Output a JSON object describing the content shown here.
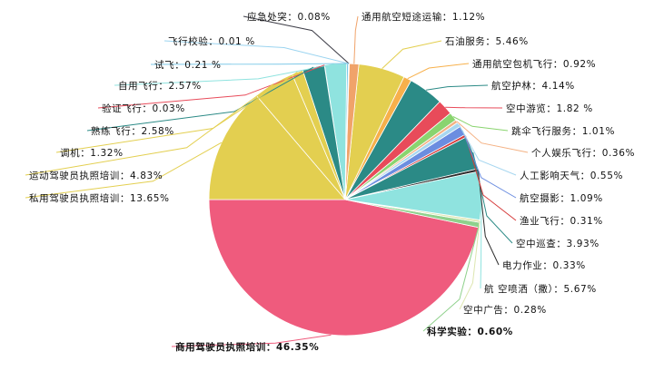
{
  "chart_data": {
    "type": "pie",
    "title": "",
    "slices": [
      {
        "label": "商用驾驶员执照培训：46.35%",
        "value": 46.35,
        "color": "#ef5b7d"
      },
      {
        "label": "科学实验：0.60%",
        "value": 0.6,
        "color": "#8fd18c"
      },
      {
        "label": "空中广告：0.28%",
        "value": 0.28,
        "color": "#dde6b0"
      },
      {
        "label": "航 空喷洒（撒）：5.67%",
        "value": 5.67,
        "color": "#8fe3df"
      },
      {
        "label": "电力作业：0.33%",
        "value": 0.33,
        "color": "#2d2d2d"
      },
      {
        "label": "空中巡查：3.93%",
        "value": 3.93,
        "color": "#2b8a86"
      },
      {
        "label": "渔业飞行：0.31%",
        "value": 0.31,
        "color": "#d63b3b"
      },
      {
        "label": "航空摄影：1.09%",
        "value": 1.09,
        "color": "#6b8de0"
      },
      {
        "label": "人工影响天气：0.55%",
        "value": 0.55,
        "color": "#a8d7f0"
      },
      {
        "label": "个人娱乐飞行：0.36%",
        "value": 0.36,
        "color": "#f4b183"
      },
      {
        "label": "跳伞飞行服务：1.01%",
        "value": 1.01,
        "color": "#8ad46f"
      },
      {
        "label": "空中游览：1.82 %",
        "value": 1.82,
        "color": "#e84b5a"
      },
      {
        "label": "航空护林：4.14%",
        "value": 4.14,
        "color": "#2b8a86"
      },
      {
        "label": "通用航空包机飞行：0.92%",
        "value": 0.92,
        "color": "#f7b04b"
      },
      {
        "label": "石油服务：5.46%",
        "value": 5.46,
        "color": "#e3cf50"
      },
      {
        "label": "通用航空短途运输：1.12%",
        "value": 1.12,
        "color": "#f0a36a"
      },
      {
        "label": "应急处突：0.08%",
        "value": 0.08,
        "color": "#3d3d47"
      },
      {
        "label": "飞行校验：0.01 %",
        "value": 0.01,
        "color": "#9bd4f0"
      },
      {
        "label": "试飞：0.21 %",
        "value": 0.21,
        "color": "#7fc9e8"
      },
      {
        "label": "自用飞行：2.57%",
        "value": 2.57,
        "color": "#8fe3df"
      },
      {
        "label": "验证飞行：0.03%",
        "value": 0.03,
        "color": "#e84b5a"
      },
      {
        "label": "熟练飞行：2.58%",
        "value": 2.58,
        "color": "#2b8a86"
      },
      {
        "label": "调机：1.32%",
        "value": 1.32,
        "color": "#e3cf50"
      },
      {
        "label": "运动驾驶员执照培训：4.83%",
        "value": 4.83,
        "color": "#e3cf50"
      },
      {
        "label": "私用驾驶员执照培训：13.65%",
        "value": 13.65,
        "color": "#e3cf50"
      }
    ],
    "legend": "none"
  }
}
